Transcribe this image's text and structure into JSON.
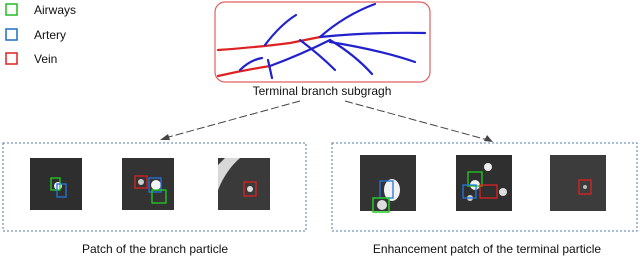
{
  "legend": {
    "items": [
      {
        "label": "Airways"
      },
      {
        "label": "Artery"
      },
      {
        "label": "Vein"
      }
    ]
  },
  "top": {
    "caption": "Terminal branch subgragh"
  },
  "panels": [
    {
      "caption": "Patch of the branch particle"
    },
    {
      "caption": "Enhancement patch of the terminal particle"
    }
  ]
}
